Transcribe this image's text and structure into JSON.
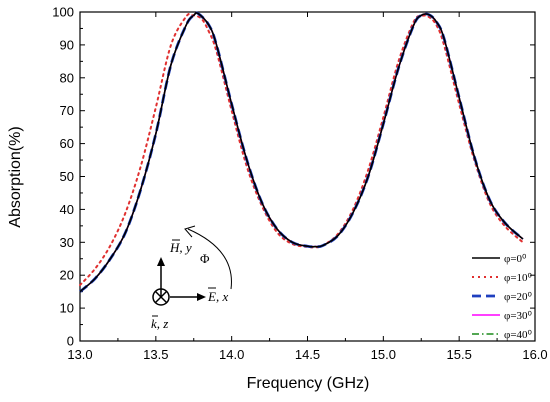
{
  "chart_data": {
    "type": "line",
    "title": "",
    "xlabel": "Frequency (GHz)",
    "ylabel": "Absorption(%)",
    "xlim": [
      13.0,
      16.0
    ],
    "ylim": [
      0,
      100
    ],
    "xticks": [
      "13.0",
      "13.5",
      "14.0",
      "14.5",
      "15.0",
      "15.5",
      "16.0"
    ],
    "yticks": [
      "0",
      "10",
      "20",
      "30",
      "40",
      "50",
      "60",
      "70",
      "80",
      "90",
      "100"
    ],
    "grid": false,
    "legend_position": "bottom-right",
    "series": [
      {
        "name": "φ=0⁰",
        "color": "#000000",
        "style": "solid",
        "x": [
          13.0,
          13.1,
          13.2,
          13.3,
          13.4,
          13.5,
          13.6,
          13.7,
          13.75,
          13.78,
          13.85,
          13.9,
          14.0,
          14.1,
          14.2,
          14.3,
          14.4,
          14.5,
          14.55,
          14.6,
          14.7,
          14.8,
          14.9,
          15.0,
          15.1,
          15.2,
          15.25,
          15.3,
          15.35,
          15.4,
          15.5,
          15.6,
          15.7,
          15.8,
          15.92
        ],
        "y": [
          15,
          19,
          25,
          33,
          46,
          63,
          84,
          96,
          99,
          99.5,
          96,
          90,
          72,
          55,
          42,
          34,
          30,
          28.8,
          28.7,
          29,
          32,
          39,
          50,
          66,
          83,
          96,
          99,
          99.2,
          97,
          92,
          74,
          56,
          43,
          36,
          31
        ]
      },
      {
        "name": "φ=10⁰",
        "color": "#e03030",
        "style": "dotted",
        "x": [
          13.0,
          13.1,
          13.2,
          13.3,
          13.4,
          13.5,
          13.6,
          13.7,
          13.74,
          13.8,
          13.85,
          13.9,
          14.0,
          14.1,
          14.2,
          14.3,
          14.4,
          14.5,
          14.55,
          14.6,
          14.7,
          14.8,
          14.9,
          15.0,
          15.1,
          15.2,
          15.25,
          15.3,
          15.35,
          15.4,
          15.5,
          15.6,
          15.7,
          15.8,
          15.92
        ],
        "y": [
          17,
          22,
          29,
          39,
          53,
          71,
          90,
          98.6,
          99,
          98,
          94,
          88,
          70,
          53,
          41,
          33,
          29.5,
          28.6,
          28.5,
          29,
          32.5,
          40,
          52,
          68,
          85,
          97,
          98.8,
          98.5,
          96,
          90,
          72,
          55,
          42,
          35,
          30
        ]
      },
      {
        "name": "φ=20⁰",
        "color": "#1f3fbf",
        "style": "dashed",
        "x": [
          13.0,
          13.1,
          13.2,
          13.3,
          13.4,
          13.5,
          13.6,
          13.7,
          13.75,
          13.78,
          13.85,
          13.9,
          14.0,
          14.1,
          14.2,
          14.3,
          14.4,
          14.5,
          14.55,
          14.6,
          14.7,
          14.8,
          14.9,
          15.0,
          15.1,
          15.2,
          15.25,
          15.3,
          15.35,
          15.4,
          15.5,
          15.6,
          15.7,
          15.8,
          15.92
        ],
        "y": [
          15,
          19,
          25,
          33,
          46,
          63,
          84,
          96,
          99,
          99.5,
          96,
          90,
          72,
          55,
          42,
          34,
          30,
          28.8,
          28.7,
          29,
          32,
          39,
          50,
          66,
          83,
          96,
          99,
          99.2,
          97,
          92,
          74,
          56,
          43,
          36,
          31
        ]
      },
      {
        "name": "φ=30⁰",
        "color": "#ff00ff",
        "style": "solid",
        "x": [
          13.0,
          13.1,
          13.2,
          13.3,
          13.4,
          13.5,
          13.6,
          13.7,
          13.75,
          13.78,
          13.85,
          13.9,
          14.0,
          14.1,
          14.2,
          14.3,
          14.4,
          14.5,
          14.55,
          14.6,
          14.7,
          14.8,
          14.9,
          15.0,
          15.1,
          15.2,
          15.25,
          15.3,
          15.35,
          15.4,
          15.5,
          15.6,
          15.7,
          15.8,
          15.92
        ],
        "y": [
          15,
          19,
          25,
          33,
          46,
          63,
          84,
          96,
          99,
          99.5,
          96,
          90,
          72,
          55,
          42,
          34,
          30,
          28.8,
          28.7,
          29,
          32,
          39,
          50,
          66,
          83,
          96,
          99,
          99.2,
          97,
          92,
          74,
          56,
          43,
          36,
          31
        ]
      },
      {
        "name": "φ=40⁰",
        "color": "#1a8a1a",
        "style": "dashdot",
        "x": [
          13.0,
          13.1,
          13.2,
          13.3,
          13.4,
          13.5,
          13.6,
          13.7,
          13.75,
          13.78,
          13.85,
          13.9,
          14.0,
          14.1,
          14.2,
          14.3,
          14.4,
          14.5,
          14.55,
          14.6,
          14.7,
          14.8,
          14.9,
          15.0,
          15.1,
          15.2,
          15.25,
          15.3,
          15.35,
          15.4,
          15.5,
          15.6,
          15.7,
          15.8,
          15.92
        ],
        "y": [
          15,
          19,
          25,
          33,
          46,
          63,
          84,
          96,
          99,
          99.5,
          96,
          90,
          72,
          55,
          42,
          34,
          30,
          28.8,
          28.7,
          29,
          32,
          39,
          50,
          66,
          83,
          96,
          99,
          99.2,
          97,
          92,
          74,
          56,
          43,
          36,
          31
        ]
      }
    ],
    "annotations": {
      "h_label": "H, y",
      "e_label": "E, x",
      "k_label": "k, z",
      "phi_label": "Φ"
    }
  }
}
